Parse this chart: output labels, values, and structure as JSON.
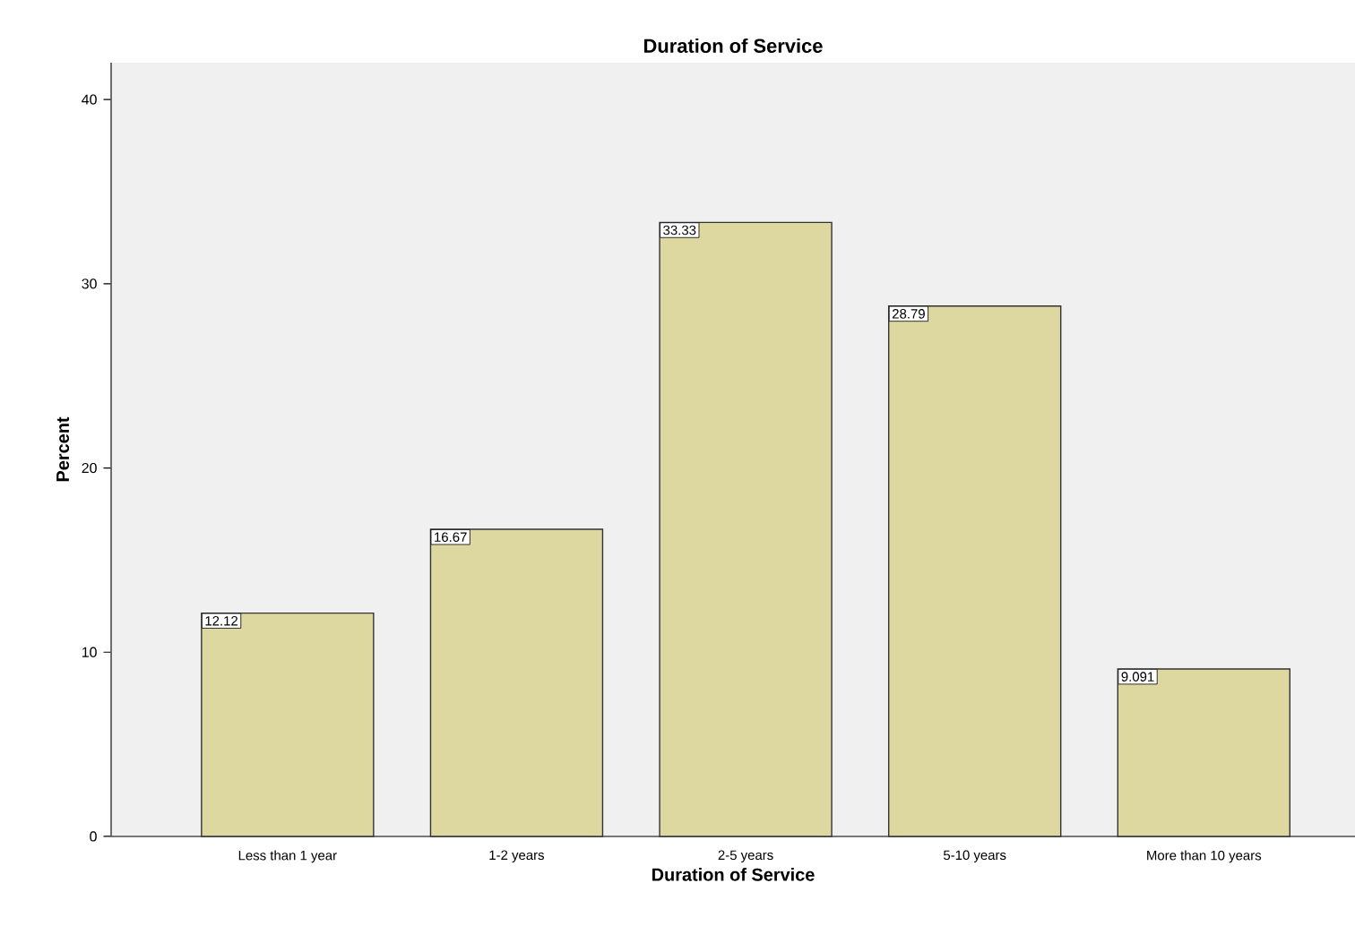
{
  "chart_data": {
    "type": "bar",
    "title": "Duration of Service",
    "xlabel": "Duration of Service",
    "ylabel": "Percent",
    "categories": [
      "Less than 1 year",
      "1-2 years",
      "2-5 years",
      "5-10 years",
      "More than 10 years"
    ],
    "values": [
      12.12,
      16.67,
      33.33,
      28.79,
      9.091
    ],
    "color": "#dcd8a0",
    "ylim": [
      0,
      42
    ],
    "yticks": [
      0,
      10,
      20,
      30,
      40
    ],
    "data_labels": true
  }
}
